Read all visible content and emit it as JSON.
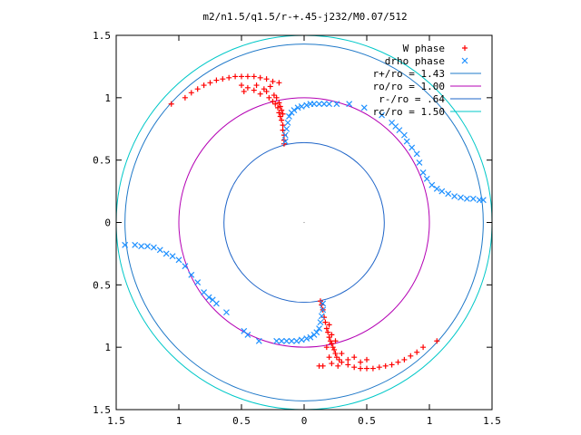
{
  "chart_data": {
    "type": "scatter",
    "title": "m2/n1.5/q1.5/r-+.45-j232/M0.07/512",
    "xlabel": "",
    "ylabel": "",
    "xlim": [
      -1.5,
      1.5
    ],
    "ylim": [
      -1.5,
      1.5
    ],
    "x_ticks": [
      -1.5,
      -1,
      -0.5,
      0,
      0.5,
      1,
      1.5
    ],
    "y_ticks": [
      -1.5,
      -1,
      -0.5,
      0,
      0.5,
      1,
      1.5
    ],
    "x_tick_labels": [
      "1.5",
      "1",
      "0.5",
      "0",
      "0.5",
      "1",
      "1.5"
    ],
    "y_tick_labels": [
      "1.5",
      "1",
      "0.5",
      "0",
      "0.5",
      "1",
      "1.5"
    ],
    "grid": false,
    "legend_position": "top-right",
    "series": [
      {
        "name": "W phase",
        "kind": "scatter",
        "marker": "plus",
        "color": "#ff0000",
        "points": [
          [
            -1.06,
            0.95
          ],
          [
            -0.95,
            1.0
          ],
          [
            -0.9,
            1.04
          ],
          [
            -0.85,
            1.07
          ],
          [
            -0.8,
            1.1
          ],
          [
            -0.75,
            1.12
          ],
          [
            -0.7,
            1.14
          ],
          [
            -0.65,
            1.15
          ],
          [
            -0.6,
            1.16
          ],
          [
            -0.55,
            1.17
          ],
          [
            -0.5,
            1.17
          ],
          [
            -0.45,
            1.17
          ],
          [
            -0.4,
            1.17
          ],
          [
            -0.35,
            1.16
          ],
          [
            -0.3,
            1.15
          ],
          [
            -0.25,
            1.13
          ],
          [
            -0.2,
            1.12
          ],
          [
            -0.5,
            1.1
          ],
          [
            -0.48,
            1.05
          ],
          [
            -0.45,
            1.08
          ],
          [
            -0.4,
            1.06
          ],
          [
            -0.38,
            1.1
          ],
          [
            -0.35,
            1.03
          ],
          [
            -0.32,
            1.07
          ],
          [
            -0.3,
            1.05
          ],
          [
            -0.28,
            1.0
          ],
          [
            -0.27,
            1.09
          ],
          [
            -0.25,
            0.97
          ],
          [
            -0.24,
            1.02
          ],
          [
            -0.23,
            0.95
          ],
          [
            -0.22,
            1.0
          ],
          [
            -0.21,
            0.92
          ],
          [
            -0.2,
            0.96
          ],
          [
            -0.2,
            0.88
          ],
          [
            -0.19,
            0.93
          ],
          [
            -0.19,
            0.85
          ],
          [
            -0.18,
            0.9
          ],
          [
            -0.18,
            0.82
          ],
          [
            -0.17,
            0.87
          ],
          [
            -0.17,
            0.78
          ],
          [
            -0.17,
            0.74
          ],
          [
            -0.16,
            0.7
          ],
          [
            -0.16,
            0.66
          ],
          [
            -0.16,
            0.63
          ],
          [
            1.06,
            -0.95
          ],
          [
            0.95,
            -1.0
          ],
          [
            0.9,
            -1.04
          ],
          [
            0.85,
            -1.07
          ],
          [
            0.8,
            -1.1
          ],
          [
            0.75,
            -1.12
          ],
          [
            0.7,
            -1.14
          ],
          [
            0.65,
            -1.15
          ],
          [
            0.6,
            -1.16
          ],
          [
            0.55,
            -1.17
          ],
          [
            0.5,
            -1.17
          ],
          [
            0.45,
            -1.17
          ],
          [
            0.4,
            -1.16
          ],
          [
            0.35,
            -1.14
          ],
          [
            0.3,
            -1.12
          ],
          [
            0.28,
            -1.1
          ],
          [
            0.26,
            -1.08
          ],
          [
            0.25,
            -1.05
          ],
          [
            0.24,
            -1.02
          ],
          [
            0.23,
            -1.0
          ],
          [
            0.22,
            -0.97
          ],
          [
            0.21,
            -0.95
          ],
          [
            0.2,
            -0.92
          ],
          [
            0.19,
            -0.88
          ],
          [
            0.18,
            -0.85
          ],
          [
            0.17,
            -0.8
          ],
          [
            0.16,
            -0.76
          ],
          [
            0.15,
            -0.7
          ],
          [
            0.14,
            -0.66
          ],
          [
            0.13,
            -0.63
          ],
          [
            0.3,
            -1.05
          ],
          [
            0.35,
            -1.1
          ],
          [
            0.4,
            -1.08
          ],
          [
            0.45,
            -1.12
          ],
          [
            0.5,
            -1.1
          ],
          [
            0.27,
            -1.15
          ],
          [
            0.22,
            -1.13
          ],
          [
            0.15,
            -1.15
          ],
          [
            0.12,
            -1.15
          ],
          [
            0.2,
            -1.08
          ],
          [
            0.25,
            -0.95
          ],
          [
            0.2,
            -0.82
          ],
          [
            0.22,
            -0.9
          ],
          [
            0.18,
            -1.0
          ]
        ]
      },
      {
        "name": "drho phase",
        "kind": "scatter",
        "marker": "cross",
        "color": "#1e90ff",
        "points": [
          [
            -0.15,
            0.65
          ],
          [
            -0.15,
            0.7
          ],
          [
            -0.14,
            0.75
          ],
          [
            -0.13,
            0.8
          ],
          [
            -0.12,
            0.85
          ],
          [
            -0.1,
            0.88
          ],
          [
            -0.08,
            0.9
          ],
          [
            -0.05,
            0.92
          ],
          [
            -0.02,
            0.93
          ],
          [
            0.02,
            0.94
          ],
          [
            0.05,
            0.95
          ],
          [
            0.08,
            0.95
          ],
          [
            0.12,
            0.95
          ],
          [
            0.16,
            0.95
          ],
          [
            0.2,
            0.95
          ],
          [
            0.26,
            0.95
          ],
          [
            0.36,
            0.95
          ],
          [
            0.48,
            0.92
          ],
          [
            0.62,
            0.86
          ],
          [
            0.7,
            0.8
          ],
          [
            0.73,
            0.77
          ],
          [
            0.76,
            0.74
          ],
          [
            0.8,
            0.7
          ],
          [
            0.82,
            0.65
          ],
          [
            0.86,
            0.6
          ],
          [
            0.9,
            0.55
          ],
          [
            0.92,
            0.48
          ],
          [
            0.95,
            0.4
          ],
          [
            0.98,
            0.35
          ],
          [
            1.02,
            0.3
          ],
          [
            1.06,
            0.27
          ],
          [
            1.1,
            0.25
          ],
          [
            1.15,
            0.23
          ],
          [
            1.2,
            0.21
          ],
          [
            1.25,
            0.2
          ],
          [
            1.3,
            0.19
          ],
          [
            1.35,
            0.19
          ],
          [
            1.4,
            0.18
          ],
          [
            1.43,
            0.18
          ],
          [
            0.15,
            -0.65
          ],
          [
            0.15,
            -0.7
          ],
          [
            0.14,
            -0.75
          ],
          [
            0.13,
            -0.8
          ],
          [
            0.12,
            -0.85
          ],
          [
            0.1,
            -0.88
          ],
          [
            0.08,
            -0.9
          ],
          [
            0.05,
            -0.92
          ],
          [
            0.02,
            -0.93
          ],
          [
            -0.02,
            -0.94
          ],
          [
            -0.06,
            -0.95
          ],
          [
            -0.1,
            -0.95
          ],
          [
            -0.14,
            -0.95
          ],
          [
            -0.18,
            -0.95
          ],
          [
            -0.22,
            -0.95
          ],
          [
            -0.36,
            -0.95
          ],
          [
            -0.45,
            -0.9
          ],
          [
            -0.48,
            -0.87
          ],
          [
            -0.62,
            -0.72
          ],
          [
            -0.7,
            -0.65
          ],
          [
            -0.73,
            -0.62
          ],
          [
            -0.76,
            -0.6
          ],
          [
            -0.8,
            -0.56
          ],
          [
            -0.85,
            -0.48
          ],
          [
            -0.9,
            -0.42
          ],
          [
            -0.95,
            -0.35
          ],
          [
            -1.0,
            -0.3
          ],
          [
            -1.05,
            -0.27
          ],
          [
            -1.1,
            -0.25
          ],
          [
            -1.15,
            -0.22
          ],
          [
            -1.2,
            -0.2
          ],
          [
            -1.25,
            -0.19
          ],
          [
            -1.3,
            -0.19
          ],
          [
            -1.35,
            -0.18
          ],
          [
            -1.43,
            -0.18
          ]
        ]
      },
      {
        "name": "r+/ro = 1.43",
        "kind": "circle",
        "radius": 1.43,
        "color": "#1e78c8"
      },
      {
        "name": "ro/ro = 1.00",
        "kind": "circle",
        "radius": 1.0,
        "color": "#b400b4"
      },
      {
        "name": "r-/ro = .64",
        "kind": "circle",
        "radius": 0.64,
        "color": "#1e64c8"
      },
      {
        "name": "rc/ro = 1.50",
        "kind": "circle",
        "radius": 1.5,
        "color": "#00c8c8",
        "in_frame": false
      }
    ]
  }
}
